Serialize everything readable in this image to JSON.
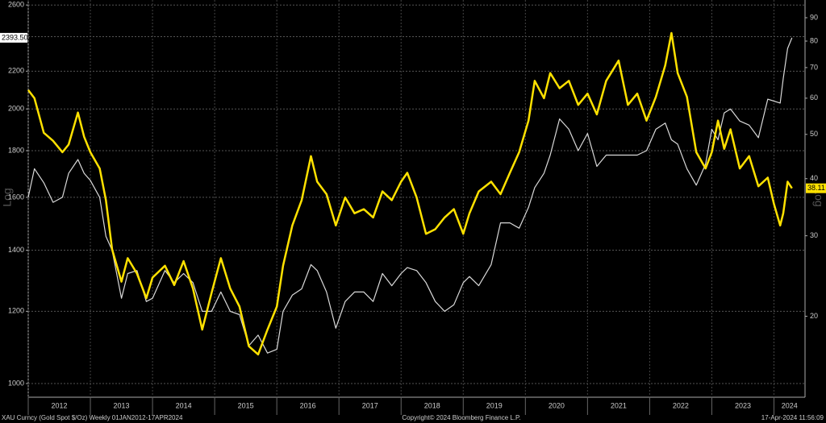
{
  "chart_data": {
    "type": "line",
    "x": [
      2012.0,
      2012.1,
      2012.25,
      2012.4,
      2012.55,
      2012.65,
      2012.8,
      2012.9,
      2013.0,
      2013.15,
      2013.25,
      2013.35,
      2013.5,
      2013.6,
      2013.75,
      2013.9,
      2014.0,
      2014.2,
      2014.35,
      2014.5,
      2014.65,
      2014.8,
      2014.95,
      2015.1,
      2015.25,
      2015.4,
      2015.55,
      2015.7,
      2015.85,
      2016.0,
      2016.1,
      2016.25,
      2016.4,
      2016.55,
      2016.65,
      2016.8,
      2016.95,
      2017.1,
      2017.25,
      2017.4,
      2017.55,
      2017.7,
      2017.85,
      2018.0,
      2018.1,
      2018.25,
      2018.4,
      2018.55,
      2018.7,
      2018.85,
      2019.0,
      2019.1,
      2019.25,
      2019.45,
      2019.6,
      2019.75,
      2019.9,
      2020.05,
      2020.15,
      2020.3,
      2020.4,
      2020.55,
      2020.7,
      2020.85,
      2021.0,
      2021.15,
      2021.3,
      2021.5,
      2021.65,
      2021.8,
      2021.95,
      2022.1,
      2022.25,
      2022.35,
      2022.45,
      2022.6,
      2022.75,
      2022.9,
      2023.0,
      2023.1,
      2023.2,
      2023.3,
      2023.45,
      2023.6,
      2023.75,
      2023.9,
      2024.0,
      2024.1,
      2024.15,
      2024.22,
      2024.29
    ],
    "series": [
      {
        "color": "#d9d9d9",
        "values": [
          1600,
          1720,
          1660,
          1580,
          1600,
          1700,
          1760,
          1700,
          1670,
          1600,
          1450,
          1400,
          1240,
          1320,
          1330,
          1230,
          1240,
          1330,
          1290,
          1320,
          1290,
          1200,
          1200,
          1260,
          1200,
          1190,
          1100,
          1130,
          1080,
          1090,
          1200,
          1250,
          1270,
          1350,
          1330,
          1260,
          1150,
          1230,
          1260,
          1260,
          1230,
          1320,
          1280,
          1320,
          1340,
          1330,
          1290,
          1230,
          1200,
          1220,
          1290,
          1310,
          1280,
          1350,
          1500,
          1500,
          1480,
          1560,
          1640,
          1700,
          1780,
          1950,
          1900,
          1800,
          1880,
          1730,
          1780,
          1780,
          1780,
          1780,
          1800,
          1900,
          1930,
          1850,
          1830,
          1720,
          1650,
          1740,
          1900,
          1850,
          1980,
          2000,
          1940,
          1920,
          1860,
          2050,
          2040,
          2030,
          2160,
          2330,
          2393.5
        ],
        "value_labels": [
          null,
          null,
          null,
          null,
          null,
          null,
          null,
          null,
          null,
          null,
          null,
          null,
          null,
          null,
          null,
          null,
          null,
          null,
          null,
          null,
          null,
          null,
          null,
          null,
          null,
          null,
          null,
          null,
          null,
          null,
          null,
          null,
          null,
          null,
          null,
          null,
          null,
          null,
          null,
          null,
          null,
          null,
          null,
          null,
          null,
          null,
          null,
          null,
          null,
          null,
          null,
          null,
          null,
          null,
          null,
          null,
          null,
          null,
          null,
          null,
          null,
          null,
          null,
          null,
          null,
          null,
          null,
          null,
          null,
          null,
          null,
          null,
          null,
          null,
          null,
          null,
          null,
          null,
          null,
          null,
          null,
          null,
          null,
          null,
          null,
          null,
          null,
          null,
          null,
          null,
          "2393.50"
        ]
      },
      {
        "color": "#ffe100",
        "axis": "y2",
        "values": [
          62.5,
          60,
          50.4,
          48.4,
          45.7,
          47.5,
          55.8,
          49.4,
          45.7,
          42.1,
          35.9,
          28.0,
          23.8,
          26.8,
          24.8,
          21.9,
          24.3,
          25.8,
          23.4,
          26.4,
          23.0,
          18.7,
          22.5,
          26.8,
          23.0,
          21.0,
          17.2,
          16.5,
          18.7,
          21.0,
          25.8,
          31.6,
          35.9,
          44.8,
          39.4,
          37.0,
          31.6,
          36.4,
          33.6,
          34.3,
          32.9,
          37.5,
          35.9,
          39.4,
          41.2,
          36.4,
          30.3,
          31.0,
          32.9,
          34.3,
          30.3,
          33.6,
          37.5,
          39.4,
          37.0,
          41.2,
          45.7,
          53.6,
          65.5,
          60.0,
          68.1,
          63.1,
          65.5,
          58.0,
          61.4,
          55.3,
          65.5,
          72.5,
          58.0,
          61.4,
          53.6,
          60.4,
          70.8,
          83.3,
          68.1,
          60.4,
          45.7,
          42.1,
          45.7,
          53.6,
          46.5,
          51.3,
          42.1,
          44.8,
          38.5,
          40.2,
          35.2,
          31.6,
          33.6,
          39.4,
          38.11
        ]
      }
    ],
    "xlim": [
      2012.0,
      2024.5
    ],
    "xticks": [
      2012,
      2013,
      2014,
      2015,
      2016,
      2017,
      2018,
      2019,
      2020,
      2021,
      2022,
      2023,
      2024
    ],
    "ylim": [
      966,
      2633
    ],
    "yticks": [
      1000,
      1200,
      1400,
      1600,
      1800,
      2000,
      2200,
      2400,
      2600
    ],
    "ylog": true,
    "y2lim": [
      13.3,
      98.4
    ],
    "y2ticks": [
      20,
      30,
      40,
      50,
      60,
      70,
      80,
      90
    ],
    "y2log": true,
    "ylabel": "Log",
    "y2label": "Log",
    "grid": true,
    "footer_left": "XAU Curncy (Gold Spot  $/Oz)  Weekly 01JAN2012-17APR2024",
    "footer_center": "Copyright© 2024 Bloomberg Finance L.P.",
    "footer_right": "17-Apr-2024 11:56:09"
  }
}
